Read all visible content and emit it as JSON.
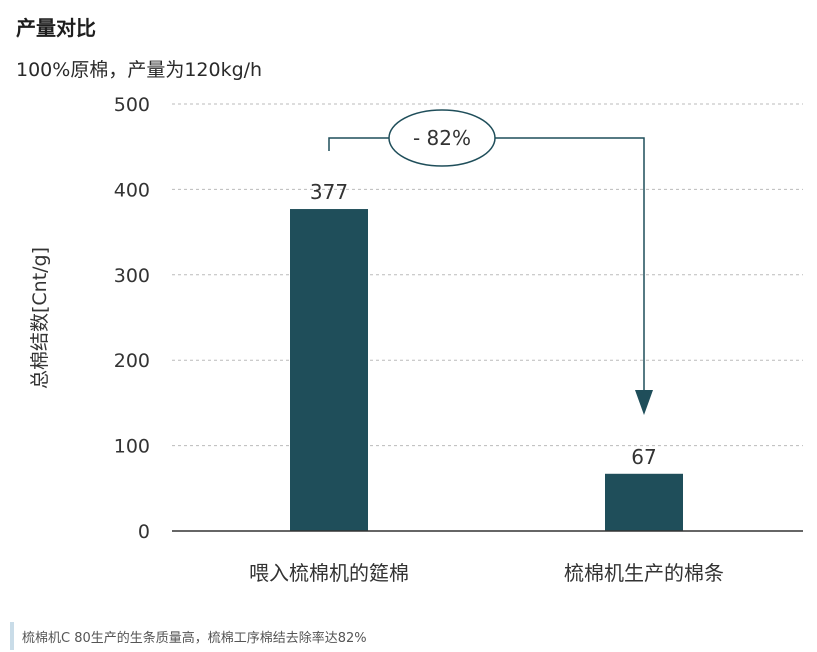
{
  "title": "产量对比",
  "subtitle": "100%原棉，产量为120kg/h",
  "caption": "梳棉机C 80生产的生条质量高，梳棉工序棉结去除率达82%",
  "colors": {
    "bar": "#1f4e5a",
    "arrow": "#1f4e5a",
    "grid": "#bbbbbb",
    "axis": "#333333"
  },
  "chart_data": {
    "type": "bar",
    "categories": [
      "喂入梳棉机的筵棉",
      "梳棉机生产的棉条"
    ],
    "values": [
      377,
      67
    ],
    "data_labels": [
      "377",
      "67"
    ],
    "ylabel": "总棉结数[Cnt/g]",
    "xlabel": "",
    "ylim": [
      0,
      500
    ],
    "yticks": [
      0,
      100,
      200,
      300,
      400,
      500
    ],
    "grid": true,
    "annotation": "- 82%"
  }
}
